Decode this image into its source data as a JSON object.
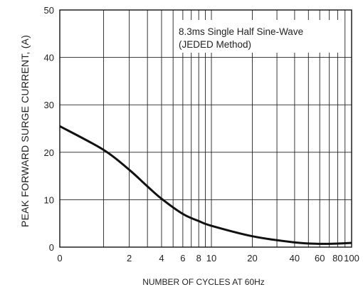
{
  "chart_data": {
    "type": "line",
    "title": "",
    "xlabel": "NUMBER OF CYCLES AT 60Hz",
    "ylabel": "PEAK FORWARD SURGE CURRENT, (A)",
    "x_scale": "log-like",
    "x_tick_labels": [
      "0",
      "2",
      "4",
      "6",
      "8",
      "10",
      "20",
      "40",
      "60",
      "80",
      "100"
    ],
    "x_minor_grid": [
      "1",
      "3",
      "5",
      "7",
      "9",
      "30",
      "50",
      "70",
      "90"
    ],
    "y_ticks": [
      0,
      10,
      20,
      30,
      40,
      50
    ],
    "ylim": [
      0,
      50
    ],
    "grid": true,
    "annotations": [
      "8.3ms Single Half Sine-Wave",
      "(JEDED Method)"
    ],
    "series": [
      {
        "name": "",
        "x": [
          "0",
          "1",
          "2",
          "3",
          "4",
          "6",
          "8",
          "10",
          "20",
          "40",
          "60",
          "80",
          "100"
        ],
        "y": [
          25.5,
          20.5,
          16.3,
          12.8,
          10.2,
          7.0,
          5.5,
          4.5,
          2.3,
          1.0,
          0.7,
          0.75,
          0.9
        ]
      }
    ]
  }
}
